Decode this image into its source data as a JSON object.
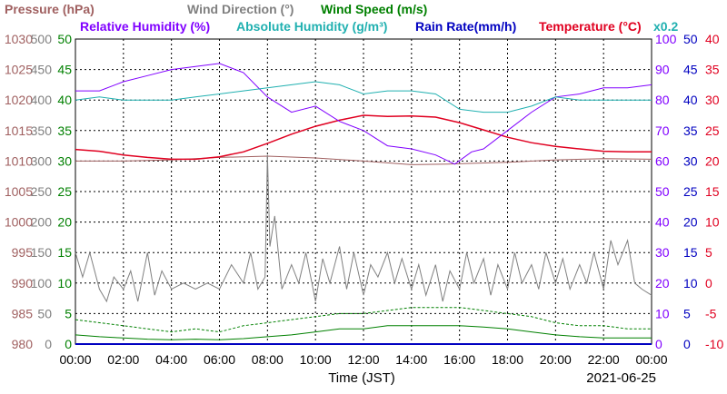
{
  "chart_data": {
    "type": "line",
    "xlabel": "Time (JST)",
    "date": "2021-06-25",
    "x_ticks": [
      "00:00",
      "02:00",
      "04:00",
      "06:00",
      "08:00",
      "10:00",
      "12:00",
      "14:00",
      "16:00",
      "18:00",
      "20:00",
      "22:00",
      "00:00"
    ],
    "x_range_hours": [
      0,
      24
    ],
    "grid": true,
    "legend": {
      "row1": [
        {
          "text": "Pressure (hPa)",
          "color": "#a06060"
        },
        {
          "text": "Wind Direction (°)",
          "color": "#808080"
        },
        {
          "text": "Wind Speed (m/s)",
          "color": "#008000"
        }
      ],
      "row2": [
        {
          "text": "Relative Humidity (%)",
          "color": "#8000ff"
        },
        {
          "text": "Absolute Humidity (g/m³)",
          "color": "#20b0b0"
        },
        {
          "text": "Rain Rate(mm/h)",
          "color": "#0000c0"
        },
        {
          "text": "Temperature (°C)",
          "color": "#e00020"
        },
        {
          "text": "x0.2",
          "color": "#20b0b0"
        }
      ]
    },
    "axes": [
      {
        "name": "pressure",
        "color": "#a06060",
        "ticks": [
          "980",
          "985",
          "990",
          "995",
          "1000",
          "1005",
          "1010",
          "1015",
          "1020",
          "1025",
          "1030"
        ],
        "range": [
          980,
          1030
        ]
      },
      {
        "name": "wind_direction",
        "color": "#808080",
        "ticks": [
          "0",
          "50",
          "100",
          "150",
          "200",
          "250",
          "300",
          "350",
          "400",
          "450",
          "500"
        ],
        "range": [
          0,
          500
        ]
      },
      {
        "name": "wind_speed",
        "color": "#008000",
        "ticks": [
          "0",
          "5",
          "10",
          "15",
          "20",
          "25",
          "30",
          "35",
          "40",
          "45",
          "50"
        ],
        "range": [
          0,
          50
        ]
      },
      {
        "name": "humidity",
        "color": "#8000ff",
        "ticks": [
          "0",
          "10",
          "20",
          "30",
          "40",
          "50",
          "60",
          "70",
          "80",
          "90",
          "100"
        ],
        "range": [
          0,
          100
        ]
      },
      {
        "name": "rain_rate",
        "color": "#0000c0",
        "ticks": [
          "0",
          "5",
          "10",
          "15",
          "20",
          "25",
          "30",
          "35",
          "40",
          "45",
          "50"
        ],
        "range": [
          0,
          50
        ]
      },
      {
        "name": "temperature",
        "color": "#e00020",
        "ticks": [
          "-10",
          "-5",
          "0",
          "5",
          "10",
          "15",
          "20",
          "25",
          "30",
          "35",
          "40"
        ],
        "range": [
          -10,
          40
        ]
      }
    ],
    "series": [
      {
        "key": "pressure",
        "axis": "pressure",
        "color": "#a06060",
        "x": [
          0,
          2,
          4,
          6,
          8,
          10,
          12,
          14,
          15.5,
          18,
          20,
          22,
          24
        ],
        "y": [
          1010,
          1010,
          1010.2,
          1010.6,
          1010.8,
          1010.5,
          1010,
          1009.4,
          1009.5,
          1009.8,
          1010.2,
          1010.4,
          1010.3
        ]
      },
      {
        "key": "temperature",
        "axis": "temperature",
        "color": "#e00020",
        "x": [
          0,
          1,
          2,
          3,
          4,
          5,
          6,
          7,
          8,
          9,
          10,
          11,
          12,
          13,
          14,
          15,
          16,
          17,
          18,
          19,
          20,
          21,
          22,
          23,
          24
        ],
        "y": [
          21.9,
          21.6,
          21.0,
          20.6,
          20.3,
          20.3,
          20.7,
          21.5,
          22.9,
          24.4,
          25.7,
          26.7,
          27.5,
          27.3,
          27.4,
          27.2,
          26.3,
          25.1,
          23.9,
          23.0,
          22.4,
          22.0,
          21.6,
          21.5,
          21.5
        ]
      },
      {
        "key": "relative_humidity",
        "axis": "humidity",
        "color": "#8000ff",
        "x": [
          0,
          1,
          2,
          3,
          4,
          5,
          6,
          7,
          8,
          9,
          10,
          11,
          12,
          13,
          14,
          15,
          15.8,
          16.5,
          17,
          18,
          19,
          20,
          21,
          22,
          23,
          24
        ],
        "y": [
          83,
          83,
          86,
          88,
          90,
          91,
          92,
          89,
          81,
          76,
          78,
          73,
          70,
          65,
          64,
          62,
          59,
          63,
          64,
          70,
          76,
          81,
          82,
          84,
          84,
          85
        ]
      },
      {
        "key": "absolute_humidity_x0.2",
        "axis": "humidity",
        "color": "#20b0b0",
        "x": [
          0,
          1,
          2,
          3,
          4,
          5,
          6,
          7,
          8,
          9,
          10,
          11,
          12,
          13,
          14,
          15,
          16,
          17,
          18,
          19,
          20,
          21,
          22,
          23,
          24
        ],
        "y": [
          80,
          81,
          80,
          80,
          80,
          81,
          82,
          83,
          84,
          85,
          86,
          85,
          82,
          83,
          83,
          82,
          77,
          76,
          76,
          78,
          81,
          80,
          80,
          80,
          80
        ]
      },
      {
        "key": "wind_direction",
        "axis": "wind_direction",
        "color": "#808080",
        "x": [
          0,
          0.3,
          0.6,
          1,
          1.3,
          1.6,
          2,
          2.3,
          2.6,
          3,
          3.3,
          3.6,
          4,
          4.5,
          5,
          5.5,
          6,
          6.5,
          7,
          7.3,
          7.6,
          7.9,
          8,
          8.1,
          8.3,
          8.6,
          9,
          9.3,
          9.6,
          10,
          10.3,
          10.6,
          11,
          11.3,
          11.6,
          12,
          12.3,
          12.6,
          13,
          13.3,
          13.6,
          14,
          14.3,
          14.6,
          15,
          15.3,
          15.6,
          16,
          16.3,
          16.6,
          17,
          17.3,
          17.6,
          18,
          18.3,
          18.6,
          19,
          19.3,
          19.6,
          20,
          20.3,
          20.6,
          21,
          21.3,
          21.6,
          22,
          22.3,
          22.6,
          23,
          23.3,
          23.6,
          24
        ],
        "y": [
          150,
          110,
          150,
          90,
          70,
          110,
          90,
          120,
          70,
          150,
          80,
          120,
          90,
          100,
          90,
          100,
          90,
          130,
          100,
          150,
          90,
          110,
          310,
          160,
          210,
          90,
          130,
          100,
          150,
          70,
          140,
          100,
          160,
          90,
          150,
          80,
          130,
          110,
          150,
          100,
          140,
          90,
          130,
          80,
          130,
          70,
          120,
          90,
          150,
          100,
          140,
          80,
          130,
          90,
          150,
          100,
          130,
          90,
          150,
          100,
          140,
          90,
          130,
          100,
          150,
          90,
          170,
          130,
          170,
          100,
          90,
          80
        ]
      },
      {
        "key": "wind_speed_max",
        "axis": "wind_speed",
        "color": "#008000",
        "x": [
          0,
          1,
          2,
          3,
          4,
          5,
          6,
          7,
          8,
          9,
          10,
          11,
          12,
          13,
          14,
          15,
          16,
          17,
          18,
          19,
          20,
          21,
          22,
          23,
          24
        ],
        "y": [
          4,
          3.5,
          3,
          2.5,
          2,
          2.5,
          2,
          3,
          3.5,
          4,
          4.5,
          5,
          5,
          5.5,
          6,
          6,
          6,
          5.5,
          5,
          4.5,
          3.5,
          3,
          3,
          2.5,
          2.5
        ]
      },
      {
        "key": "wind_speed_avg",
        "axis": "wind_speed",
        "color": "#008000",
        "x": [
          0,
          1,
          2,
          3,
          4,
          5,
          6,
          7,
          8,
          9,
          10,
          11,
          12,
          13,
          14,
          15,
          16,
          17,
          18,
          19,
          20,
          21,
          22,
          23,
          24
        ],
        "y": [
          1.5,
          1.2,
          1,
          0.8,
          0.7,
          0.8,
          0.7,
          0.9,
          1.2,
          1.5,
          2,
          2.5,
          2.5,
          3,
          3,
          3,
          3,
          2.8,
          2.5,
          2,
          1.5,
          1.2,
          1,
          1,
          1
        ]
      }
    ]
  }
}
